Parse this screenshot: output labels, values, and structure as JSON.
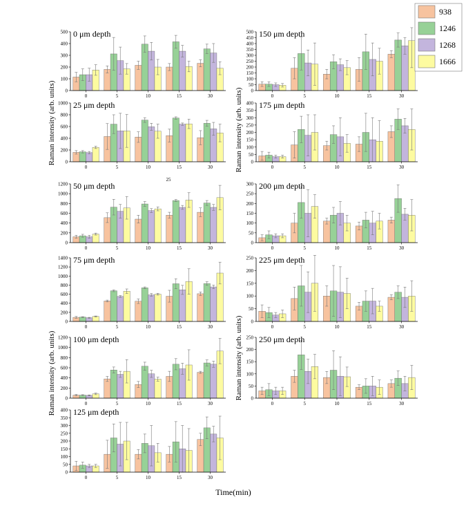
{
  "figure": {
    "ylabel": "Raman intensity (arb. units)",
    "xlabel": "Time(min)",
    "stray_label": "25"
  },
  "colors": {
    "938": "#f7c39f",
    "1246": "#97d197",
    "1268": "#c3b5dd",
    "1666": "#fdfba0"
  },
  "legend": [
    "938",
    "1246",
    "1268",
    "1666"
  ],
  "chart_data": [
    {
      "type": "bar",
      "title": "0 μm depth",
      "categories": [
        "0",
        "5",
        "10",
        "15",
        "30"
      ],
      "ylim": [
        0,
        500
      ],
      "yticks": [
        0,
        100,
        200,
        300,
        400,
        500
      ],
      "series": [
        {
          "name": "938",
          "values": [
            115,
            180,
            215,
            200,
            232
          ],
          "errors": [
            40,
            30,
            35,
            30,
            30
          ]
        },
        {
          "name": "1246",
          "values": [
            135,
            312,
            395,
            415,
            355
          ],
          "errors": [
            50,
            140,
            70,
            55,
            40
          ]
        },
        {
          "name": "1268",
          "values": [
            135,
            255,
            335,
            335,
            320
          ],
          "errors": [
            55,
            115,
            75,
            50,
            80
          ]
        },
        {
          "name": "1666",
          "values": [
            175,
            185,
            200,
            205,
            190
          ],
          "errors": [
            45,
            45,
            65,
            45,
            55
          ]
        }
      ]
    },
    {
      "type": "bar",
      "title": "25 μm depth",
      "categories": [
        "0",
        "5",
        "10",
        "15",
        "30"
      ],
      "ylim": [
        0,
        1000
      ],
      "yticks": [
        0,
        200,
        400,
        600,
        800,
        1000
      ],
      "series": [
        {
          "name": "938",
          "values": [
            160,
            430,
            420,
            445,
            410
          ],
          "errors": [
            30,
            220,
            90,
            110,
            120
          ]
        },
        {
          "name": "1246",
          "values": [
            170,
            640,
            710,
            745,
            655
          ],
          "errors": [
            20,
            160,
            40,
            20,
            50
          ]
        },
        {
          "name": "1268",
          "values": [
            155,
            525,
            595,
            640,
            560
          ],
          "errors": [
            20,
            300,
            60,
            20,
            110
          ]
        },
        {
          "name": "1666",
          "values": [
            245,
            525,
            520,
            645,
            490
          ],
          "errors": [
            20,
            280,
            120,
            80,
            150
          ]
        }
      ]
    },
    {
      "type": "bar",
      "title": "50 μm depth",
      "categories": [
        "0",
        "5",
        "10",
        "15",
        "30"
      ],
      "ylim": [
        0,
        1200
      ],
      "yticks": [
        0,
        200,
        400,
        600,
        800,
        1000,
        1200
      ],
      "series": [
        {
          "name": "938",
          "values": [
            120,
            510,
            480,
            560,
            620
          ],
          "errors": [
            30,
            100,
            80,
            60,
            90
          ]
        },
        {
          "name": "1246",
          "values": [
            140,
            725,
            790,
            860,
            810
          ],
          "errors": [
            30,
            160,
            50,
            20,
            50
          ]
        },
        {
          "name": "1268",
          "values": [
            120,
            640,
            655,
            720,
            720
          ],
          "errors": [
            30,
            140,
            40,
            40,
            60
          ]
        },
        {
          "name": "1666",
          "values": [
            175,
            710,
            690,
            870,
            920
          ],
          "errors": [
            20,
            230,
            40,
            150,
            250
          ]
        }
      ]
    },
    {
      "type": "bar",
      "title": "75 μm depth",
      "categories": [
        "0",
        "5",
        "10",
        "15",
        "30"
      ],
      "ylim": [
        0,
        1400
      ],
      "yticks": [
        0,
        200,
        400,
        600,
        800,
        1000,
        1200,
        1400
      ],
      "series": [
        {
          "name": "938",
          "values": [
            90,
            450,
            445,
            555,
            610
          ],
          "errors": [
            20,
            20,
            50,
            130,
            40
          ]
        },
        {
          "name": "1246",
          "values": [
            95,
            675,
            740,
            830,
            835
          ],
          "errors": [
            10,
            20,
            20,
            110,
            40
          ]
        },
        {
          "name": "1268",
          "values": [
            80,
            550,
            585,
            695,
            760
          ],
          "errors": [
            10,
            20,
            30,
            100,
            40
          ]
        },
        {
          "name": "1666",
          "values": [
            110,
            665,
            600,
            880,
            1065
          ],
          "errors": [
            10,
            50,
            20,
            280,
            240
          ]
        }
      ]
    },
    {
      "type": "bar",
      "title": "100 μm depth",
      "categories": [
        "0",
        "5",
        "10",
        "15",
        "30"
      ],
      "ylim": [
        0,
        1200
      ],
      "yticks": [
        0,
        200,
        400,
        600,
        800,
        1000,
        1200
      ],
      "series": [
        {
          "name": "938",
          "values": [
            60,
            380,
            270,
            430,
            510
          ],
          "errors": [
            15,
            50,
            60,
            100,
            20
          ]
        },
        {
          "name": "1246",
          "values": [
            60,
            555,
            630,
            670,
            695
          ],
          "errors": [
            10,
            60,
            80,
            110,
            60
          ]
        },
        {
          "name": "1268",
          "values": [
            55,
            470,
            480,
            580,
            670
          ],
          "errors": [
            10,
            60,
            70,
            110,
            60
          ]
        },
        {
          "name": "1666",
          "values": [
            85,
            530,
            375,
            655,
            930
          ],
          "errors": [
            15,
            230,
            40,
            300,
            250
          ]
        }
      ]
    },
    {
      "type": "bar",
      "title": "125 μm depth",
      "categories": [
        "0",
        "5",
        "10",
        "15",
        "30"
      ],
      "ylim": [
        0,
        400
      ],
      "yticks": [
        0,
        50,
        100,
        150,
        200,
        250,
        300,
        350,
        400
      ],
      "series": [
        {
          "name": "938",
          "values": [
            40,
            115,
            115,
            115,
            210
          ],
          "errors": [
            30,
            90,
            30,
            50,
            40
          ]
        },
        {
          "name": "1246",
          "values": [
            45,
            220,
            185,
            195,
            285
          ],
          "errors": [
            20,
            90,
            60,
            130,
            70
          ]
        },
        {
          "name": "1268",
          "values": [
            40,
            180,
            170,
            150,
            245
          ],
          "errors": [
            10,
            140,
            130,
            150,
            50
          ]
        },
        {
          "name": "1666",
          "values": [
            40,
            200,
            125,
            140,
            220
          ],
          "errors": [
            10,
            120,
            60,
            140,
            140
          ]
        }
      ]
    },
    {
      "type": "bar",
      "title": "150 μm depth",
      "categories": [
        "0",
        "5",
        "10",
        "15",
        "30"
      ],
      "ylim": [
        0,
        500
      ],
      "yticks": [
        0,
        50,
        100,
        150,
        200,
        250,
        300,
        350,
        400,
        450,
        500
      ],
      "series": [
        {
          "name": "938",
          "values": [
            55,
            190,
            140,
            180,
            310
          ],
          "errors": [
            20,
            90,
            40,
            100,
            30
          ]
        },
        {
          "name": "1246",
          "values": [
            55,
            315,
            245,
            330,
            430
          ],
          "errors": [
            20,
            140,
            60,
            150,
            60
          ]
        },
        {
          "name": "1268",
          "values": [
            50,
            235,
            220,
            265,
            380
          ],
          "errors": [
            15,
            110,
            50,
            140,
            70
          ]
        },
        {
          "name": "1666",
          "values": [
            45,
            225,
            195,
            250,
            425
          ],
          "errors": [
            15,
            180,
            60,
            110,
            230
          ]
        }
      ]
    },
    {
      "type": "bar",
      "title": "175 μm depth",
      "categories": [
        "0",
        "5",
        "10",
        "15",
        "30"
      ],
      "ylim": [
        0,
        400
      ],
      "yticks": [
        0,
        50,
        100,
        150,
        200,
        250,
        300,
        350,
        400
      ],
      "series": [
        {
          "name": "938",
          "values": [
            40,
            115,
            110,
            120,
            205
          ],
          "errors": [
            30,
            90,
            30,
            50,
            40
          ]
        },
        {
          "name": "1246",
          "values": [
            45,
            220,
            185,
            200,
            290
          ],
          "errors": [
            20,
            90,
            60,
            130,
            70
          ]
        },
        {
          "name": "1268",
          "values": [
            35,
            180,
            170,
            150,
            245
          ],
          "errors": [
            10,
            140,
            130,
            150,
            50
          ]
        },
        {
          "name": "1666",
          "values": [
            35,
            200,
            125,
            140,
            220
          ],
          "errors": [
            10,
            120,
            60,
            140,
            140
          ]
        }
      ]
    },
    {
      "type": "bar",
      "title": "200 μm depth",
      "categories": [
        "0",
        "5",
        "10",
        "15",
        "30"
      ],
      "ylim": [
        0,
        300
      ],
      "yticks": [
        0,
        50,
        100,
        150,
        200,
        250,
        300
      ],
      "series": [
        {
          "name": "938",
          "values": [
            25,
            100,
            110,
            85,
            115
          ],
          "errors": [
            15,
            50,
            15,
            20,
            15
          ]
        },
        {
          "name": "1246",
          "values": [
            40,
            205,
            140,
            115,
            225
          ],
          "errors": [
            20,
            80,
            40,
            40,
            70
          ]
        },
        {
          "name": "1268",
          "values": [
            35,
            150,
            150,
            100,
            145
          ],
          "errors": [
            10,
            120,
            60,
            60,
            30
          ]
        },
        {
          "name": "1666",
          "values": [
            35,
            185,
            100,
            110,
            140
          ],
          "errors": [
            10,
            60,
            40,
            40,
            80
          ]
        }
      ]
    },
    {
      "type": "bar",
      "title": "225 μm depth",
      "categories": [
        "0",
        "5",
        "10",
        "15",
        "30"
      ],
      "ylim": [
        0,
        250
      ],
      "yticks": [
        0,
        50,
        100,
        150,
        200,
        250
      ],
      "series": [
        {
          "name": "938",
          "values": [
            40,
            90,
            100,
            60,
            95
          ],
          "errors": [
            25,
            45,
            40,
            15,
            10
          ]
        },
        {
          "name": "1246",
          "values": [
            35,
            140,
            120,
            80,
            115
          ],
          "errors": [
            20,
            80,
            100,
            40,
            25
          ]
        },
        {
          "name": "1268",
          "values": [
            25,
            115,
            115,
            80,
            95
          ],
          "errors": [
            10,
            80,
            100,
            50,
            40
          ]
        },
        {
          "name": "1666",
          "values": [
            30,
            150,
            110,
            60,
            100
          ],
          "errors": [
            15,
            110,
            60,
            20,
            60
          ]
        }
      ]
    },
    {
      "type": "bar",
      "title": "250 μm depth",
      "categories": [
        "0",
        "5",
        "10",
        "15",
        "30"
      ],
      "ylim": [
        0,
        250
      ],
      "yticks": [
        0,
        50,
        100,
        150,
        200,
        250
      ],
      "series": [
        {
          "name": "938",
          "values": [
            30,
            90,
            85,
            45,
            60
          ],
          "errors": [
            15,
            25,
            25,
            10,
            15
          ]
        },
        {
          "name": "1246",
          "values": [
            35,
            178,
            115,
            50,
            82
          ],
          "errors": [
            25,
            60,
            80,
            30,
            30
          ]
        },
        {
          "name": "1268",
          "values": [
            30,
            110,
            90,
            50,
            60
          ],
          "errors": [
            15,
            50,
            80,
            40,
            30
          ]
        },
        {
          "name": "1666",
          "values": [
            30,
            130,
            88,
            45,
            85
          ],
          "errors": [
            15,
            50,
            40,
            30,
            50
          ]
        }
      ]
    }
  ]
}
